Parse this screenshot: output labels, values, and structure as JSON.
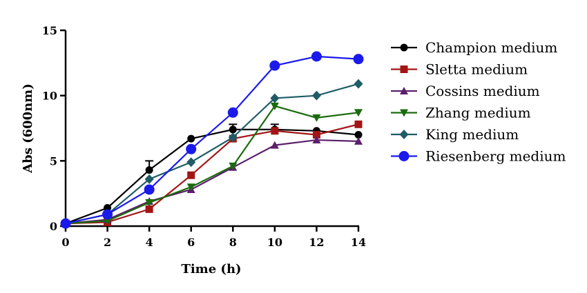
{
  "chart_data": {
    "type": "line",
    "title": "",
    "xlabel": "Time (h)",
    "ylabel": "Abs (600nm)",
    "x": [
      0,
      2,
      4,
      6,
      8,
      10,
      12,
      14
    ],
    "xlim": [
      0,
      14
    ],
    "ylim": [
      0,
      15
    ],
    "xticks": [
      "0",
      "2",
      "4",
      "6",
      "8",
      "10",
      "12",
      "14"
    ],
    "yticks": [
      "0",
      "5",
      "10",
      "15"
    ],
    "grid": false,
    "legend_position": "right",
    "series": [
      {
        "name": "Champion medium",
        "color": "#000000",
        "marker": "circle",
        "values": [
          0.2,
          1.4,
          4.3,
          6.7,
          7.4,
          7.4,
          7.3,
          7.0
        ],
        "error": [
          0,
          0,
          0.7,
          0,
          0.4,
          0.4,
          0,
          0
        ]
      },
      {
        "name": "Sletta medium",
        "color": "#a31515",
        "marker": "square",
        "values": [
          0.2,
          0.3,
          1.3,
          3.9,
          6.7,
          7.3,
          7.0,
          7.8
        ],
        "error": [
          0,
          0,
          0,
          0,
          0,
          0,
          0,
          0
        ]
      },
      {
        "name": "Cossins medium",
        "color": "#5b1f6b",
        "marker": "triangle-up",
        "values": [
          0.2,
          0.5,
          1.9,
          2.8,
          4.5,
          6.2,
          6.6,
          6.5
        ],
        "error": [
          0,
          0,
          0,
          0,
          0,
          0,
          0,
          0
        ]
      },
      {
        "name": "Zhang medium",
        "color": "#1a6b0d",
        "marker": "triangle-down",
        "values": [
          0.2,
          0.4,
          1.8,
          3.0,
          4.6,
          9.2,
          8.3,
          8.7
        ],
        "error": [
          0,
          0,
          0,
          0,
          0,
          0,
          0,
          0
        ]
      },
      {
        "name": "King medium",
        "color": "#1f5c66",
        "marker": "diamond",
        "values": [
          0.2,
          0.9,
          3.6,
          4.9,
          6.8,
          9.8,
          10.0,
          10.9
        ],
        "error": [
          0,
          0,
          0,
          0,
          0,
          0,
          0,
          0
        ]
      },
      {
        "name": "Riesenberg medium",
        "color": "#1a1aeb",
        "marker": "big-circle",
        "values": [
          0.2,
          0.9,
          2.8,
          5.9,
          8.7,
          12.3,
          13.0,
          12.8
        ],
        "error": [
          0,
          0,
          0,
          0,
          0,
          0,
          0,
          0
        ]
      }
    ]
  }
}
